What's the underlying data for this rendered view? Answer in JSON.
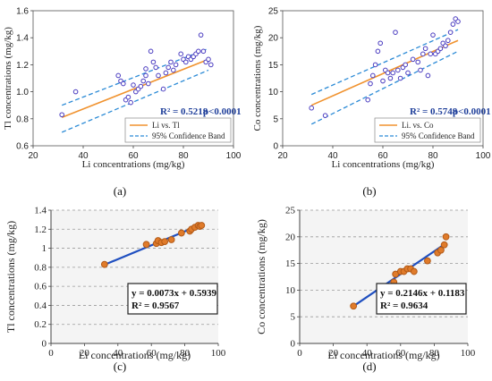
{
  "chart_data": [
    {
      "id": "a",
      "panel_label": "(a)",
      "type": "scatter",
      "xlabel": "Li concentrations (mg/kg)",
      "ylabel": "Tl concentrations (mg/kg)",
      "xlim": [
        20,
        100
      ],
      "ylim": [
        0.6,
        1.6
      ],
      "xticks": [
        "20",
        "40",
        "60",
        "80",
        "100"
      ],
      "yticks": [
        "0.6",
        "0.8",
        "1.0",
        "1.2",
        "1.4",
        "1.6"
      ],
      "points": [
        [
          31.5,
          0.83
        ],
        [
          37,
          1.0
        ],
        [
          54,
          1.12
        ],
        [
          55,
          1.08
        ],
        [
          56,
          1.06
        ],
        [
          57,
          0.94
        ],
        [
          58,
          0.96
        ],
        [
          59,
          0.92
        ],
        [
          60,
          1.05
        ],
        [
          61,
          1.0
        ],
        [
          62,
          1.02
        ],
        [
          63,
          1.04
        ],
        [
          64,
          1.08
        ],
        [
          65,
          1.12
        ],
        [
          65,
          1.17
        ],
        [
          66,
          1.06
        ],
        [
          67,
          1.3
        ],
        [
          68,
          1.22
        ],
        [
          69,
          1.18
        ],
        [
          70,
          1.12
        ],
        [
          72,
          1.02
        ],
        [
          73,
          1.14
        ],
        [
          74,
          1.18
        ],
        [
          75,
          1.22
        ],
        [
          76,
          1.16
        ],
        [
          77,
          1.2
        ],
        [
          79,
          1.28
        ],
        [
          80,
          1.24
        ],
        [
          81,
          1.22
        ],
        [
          82,
          1.26
        ],
        [
          83,
          1.24
        ],
        [
          84,
          1.26
        ],
        [
          85,
          1.28
        ],
        [
          86,
          1.3
        ],
        [
          87,
          1.42
        ],
        [
          88,
          1.3
        ],
        [
          89,
          1.22
        ],
        [
          90,
          1.24
        ],
        [
          91,
          1.2
        ]
      ],
      "fit_line": [
        [
          31.5,
          0.81
        ],
        [
          90,
          1.24
        ]
      ],
      "band_upper": [
        [
          31.5,
          0.9
        ],
        [
          90,
          1.32
        ]
      ],
      "band_lower": [
        [
          31.5,
          0.7
        ],
        [
          90,
          1.16
        ]
      ],
      "r2_text": "R² = 0.5218",
      "p_text": "p<0.0001",
      "legend": [
        "Li vs. Tl",
        "95% Confidence Band"
      ],
      "colors": {
        "points_fill": "#ffffff",
        "points_edge": "#4a3cc0",
        "fit": "#f0922e",
        "band": "#2a8ad6"
      }
    },
    {
      "id": "b",
      "panel_label": "(b)",
      "type": "scatter",
      "xlabel": "Li concentrations (mg/kg)",
      "ylabel": "Co concentrations (mg/kg)",
      "xlim": [
        20,
        100
      ],
      "ylim": [
        0,
        25
      ],
      "xticks": [
        "20",
        "40",
        "60",
        "80",
        "100"
      ],
      "yticks": [
        "0",
        "5",
        "10",
        "15",
        "20",
        "25"
      ],
      "points": [
        [
          31.5,
          7
        ],
        [
          37,
          5.6
        ],
        [
          54,
          8.5
        ],
        [
          55,
          11.5
        ],
        [
          56,
          13
        ],
        [
          57,
          15
        ],
        [
          58,
          17.5
        ],
        [
          59,
          19
        ],
        [
          60,
          12
        ],
        [
          61,
          14
        ],
        [
          62,
          13.5
        ],
        [
          63,
          12.5
        ],
        [
          64,
          13.5
        ],
        [
          65,
          21
        ],
        [
          66,
          14
        ],
        [
          67,
          12.5
        ],
        [
          68,
          14.5
        ],
        [
          69,
          15
        ],
        [
          70,
          13.5
        ],
        [
          72,
          16
        ],
        [
          74,
          15.5
        ],
        [
          75,
          14
        ],
        [
          76,
          17
        ],
        [
          77,
          18
        ],
        [
          78,
          13
        ],
        [
          79,
          17
        ],
        [
          80,
          20.5
        ],
        [
          81,
          17
        ],
        [
          82,
          17.5
        ],
        [
          83,
          18
        ],
        [
          84,
          19
        ],
        [
          85,
          18.5
        ],
        [
          86,
          19.5
        ],
        [
          87,
          21
        ],
        [
          88,
          22.5
        ],
        [
          89,
          23.5
        ],
        [
          90,
          23
        ]
      ],
      "fit_line": [
        [
          31.5,
          7.5
        ],
        [
          90,
          19.5
        ]
      ],
      "band_upper": [
        [
          31.5,
          9.5
        ],
        [
          90,
          21.5
        ]
      ],
      "band_lower": [
        [
          31.5,
          4
        ],
        [
          90,
          17.5
        ]
      ],
      "r2_text": "R² = 0.5748",
      "p_text": "p<0.0001",
      "legend": [
        "Li. vs. Co",
        "95% Confidence Band"
      ],
      "colors": {
        "points_fill": "#ffffff",
        "points_edge": "#4a3cc0",
        "fit": "#f0922e",
        "band": "#2a8ad6"
      }
    },
    {
      "id": "c",
      "panel_label": "(c)",
      "type": "scatter",
      "xlabel": "Li  concentrations (mg/kg)",
      "ylabel": "Tl  concentrations  (mg/kg)",
      "xlim": [
        0,
        100
      ],
      "ylim": [
        0,
        1.4
      ],
      "xticks": [
        "0",
        "20",
        "40",
        "60",
        "80",
        "100"
      ],
      "yticks": [
        "0",
        "0.2",
        "0.4",
        "0.6",
        "0.8",
        "1",
        "1.2",
        "1.4"
      ],
      "points": [
        [
          32,
          0.83
        ],
        [
          57,
          1.04
        ],
        [
          63,
          1.05
        ],
        [
          64,
          1.08
        ],
        [
          66,
          1.06
        ],
        [
          68,
          1.07
        ],
        [
          72,
          1.09
        ],
        [
          78,
          1.16
        ],
        [
          83,
          1.18
        ],
        [
          84,
          1.2
        ],
        [
          86,
          1.22
        ],
        [
          88,
          1.24
        ],
        [
          89,
          1.23
        ],
        [
          90,
          1.24
        ]
      ],
      "fit_line": [
        [
          32,
          0.827
        ],
        [
          89,
          1.243
        ]
      ],
      "equation": "y = 0.0073x + 0.5939",
      "r2": "R² = 0.9567",
      "colors": {
        "points_fill": "#e07b2a",
        "points_edge": "#b25a18",
        "fit": "#1f4fc0"
      }
    },
    {
      "id": "d",
      "panel_label": "(d)",
      "type": "scatter",
      "xlabel": "Li  concentrations (mg/kg)",
      "ylabel": "Co concentrations  (mg/kg)",
      "xlim": [
        0,
        100
      ],
      "ylim": [
        0,
        25
      ],
      "xticks": [
        "0",
        "20",
        "40",
        "60",
        "80",
        "100"
      ],
      "yticks": [
        "0",
        "5",
        "10",
        "15",
        "20",
        "25"
      ],
      "points": [
        [
          32,
          7
        ],
        [
          56,
          11.5
        ],
        [
          57,
          13
        ],
        [
          60,
          13.5
        ],
        [
          62,
          13.5
        ],
        [
          64,
          14
        ],
        [
          66,
          14
        ],
        [
          68,
          13.5
        ],
        [
          76,
          15.5
        ],
        [
          82,
          17
        ],
        [
          84,
          17.5
        ],
        [
          86,
          18.5
        ],
        [
          87,
          20
        ]
      ],
      "fit_line": [
        [
          32,
          6.99
        ],
        [
          87,
          18.79
        ]
      ],
      "equation": "y = 0.2146x + 0.1183",
      "r2": "R² = 0.9634",
      "colors": {
        "points_fill": "#e07b2a",
        "points_edge": "#b25a18",
        "fit": "#1f4fc0"
      }
    }
  ]
}
